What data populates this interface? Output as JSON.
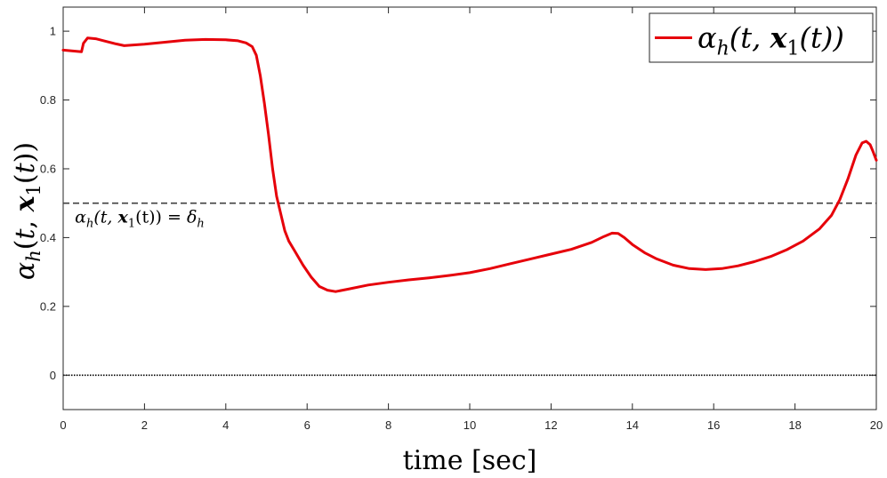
{
  "chart_data": {
    "type": "line",
    "xlabel": "time [sec]",
    "ylabel": "αh(t, x1(t))",
    "xlim": [
      0,
      20
    ],
    "ylim": [
      -0.1,
      1.07
    ],
    "xticks": [
      0,
      2,
      4,
      6,
      8,
      10,
      12,
      14,
      16,
      18,
      20
    ],
    "yticks": [
      0,
      0.2,
      0.4,
      0.6,
      0.8,
      1
    ],
    "ytick_labels": [
      "0",
      "0.2",
      "0.4",
      "0.6",
      "0.8",
      "1"
    ],
    "grid": false,
    "legend_position": "top-right",
    "series": [
      {
        "name": "αh(t, x1(t))",
        "color": "#e6000a",
        "style": "solid",
        "x": [
          0,
          0.3,
          0.45,
          0.5,
          0.6,
          0.8,
          1.0,
          1.3,
          1.5,
          2.0,
          2.5,
          3.0,
          3.5,
          4.0,
          4.3,
          4.5,
          4.65,
          4.75,
          4.85,
          4.95,
          5.05,
          5.15,
          5.25,
          5.35,
          5.45,
          5.55,
          5.7,
          5.9,
          6.1,
          6.3,
          6.5,
          6.7,
          7.0,
          7.5,
          8.0,
          8.5,
          9.0,
          9.5,
          10.0,
          10.5,
          11.0,
          11.5,
          12.0,
          12.5,
          13.0,
          13.3,
          13.5,
          13.65,
          13.8,
          14.0,
          14.3,
          14.6,
          15.0,
          15.4,
          15.8,
          16.2,
          16.6,
          17.0,
          17.4,
          17.8,
          18.2,
          18.6,
          18.9,
          19.1,
          19.3,
          19.5,
          19.65,
          19.75,
          19.85,
          19.92,
          20.0
        ],
        "y": [
          0.945,
          0.942,
          0.94,
          0.965,
          0.98,
          0.978,
          0.972,
          0.963,
          0.958,
          0.962,
          0.968,
          0.974,
          0.976,
          0.975,
          0.972,
          0.966,
          0.955,
          0.93,
          0.87,
          0.79,
          0.7,
          0.6,
          0.52,
          0.47,
          0.42,
          0.39,
          0.36,
          0.32,
          0.285,
          0.258,
          0.247,
          0.243,
          0.25,
          0.262,
          0.27,
          0.277,
          0.283,
          0.29,
          0.298,
          0.31,
          0.324,
          0.338,
          0.352,
          0.366,
          0.386,
          0.403,
          0.413,
          0.412,
          0.4,
          0.38,
          0.356,
          0.338,
          0.32,
          0.31,
          0.307,
          0.31,
          0.318,
          0.33,
          0.345,
          0.365,
          0.39,
          0.425,
          0.465,
          0.51,
          0.57,
          0.64,
          0.675,
          0.68,
          0.67,
          0.65,
          0.625
        ]
      }
    ],
    "reference_lines": [
      {
        "y": 0.5,
        "style": "dashed",
        "color": "#404040"
      },
      {
        "y": 0,
        "style": "dotted",
        "color": "#000000"
      }
    ],
    "annotations": [
      {
        "text": "αh(t, x1(t)) = δh",
        "x": 0.2,
        "y": 0.47
      }
    ]
  }
}
